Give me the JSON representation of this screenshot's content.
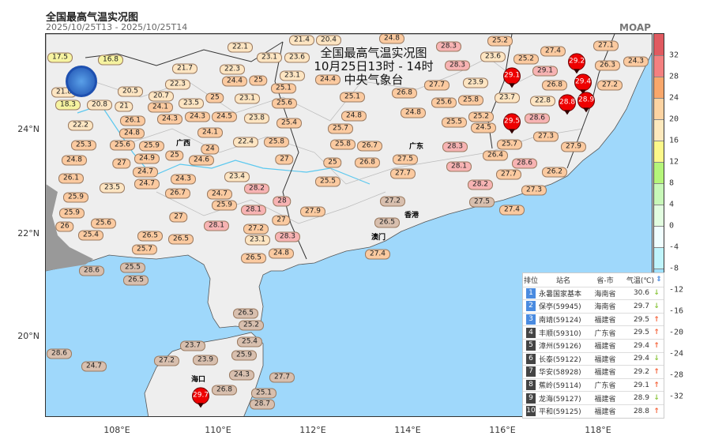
{
  "header": {
    "title": "全国最高气温实况图",
    "subtitle": "2025/10/25T13  -  2025/10/25T14",
    "brand": "MOAP"
  },
  "map": {
    "title": "全国最高气温实况图",
    "time": "10月25日13时 - 14时",
    "issuer": "中央气象台",
    "land_color": "#eeeeee",
    "sea_color": "#9fd8fb",
    "cities": [
      "广西",
      "广东",
      "香港",
      "澳门",
      "海口"
    ],
    "lat_labels": [
      "24°N",
      "22°N",
      "20°N"
    ],
    "lon_labels": [
      "108°E",
      "110°E",
      "112°E",
      "114°E",
      "116°E",
      "118°E"
    ],
    "stations": [
      "17.5",
      "16.8",
      "20.5",
      "21",
      "20.8",
      "18.3",
      "22.2",
      "24.1",
      "20.7",
      "23.5",
      "24.3",
      "24.1",
      "24.3",
      "25",
      "21.7",
      "22.3",
      "22.1",
      "22.3",
      "23.1",
      "24.4",
      "23.8",
      "25",
      "25.1",
      "24.5",
      "22.4",
      "25.8",
      "24.8",
      "25.6",
      "24.6",
      "24",
      "21.4",
      "20.4",
      "23.6",
      "23.1",
      "23.1",
      "25.6",
      "25.4",
      "24.4",
      "25.7",
      "27",
      "25.8",
      "25",
      "26.7",
      "26.8",
      "25.1",
      "24.8",
      "26.8",
      "27.7",
      "28.3",
      "28.3",
      "25.8",
      "24.8",
      "24.8",
      "23.9",
      "25.2",
      "23.6",
      "23.7",
      "25.2",
      "22.8",
      "25.6",
      "25.2",
      "25.5",
      "24.5",
      "25.7",
      "27.3",
      "28.6",
      "27.7",
      "29.1",
      "28.3",
      "28.1",
      "28.6",
      "27.4",
      "26.4",
      "28.2",
      "27.2",
      "26.8",
      "26.3",
      "27.1",
      "24.3",
      "27.5",
      "27.9",
      "27.3",
      "26.2",
      "27.4",
      "24.9",
      "24.7",
      "27",
      "25.9",
      "25.3",
      "21.8",
      "24.8",
      "26.1",
      "24.7",
      "25",
      "26.1",
      "25.9",
      "26",
      "24.3",
      "25.6",
      "25.9",
      "25.4",
      "26.5",
      "28.6",
      "26.5",
      "25.7",
      "25.5",
      "28.1",
      "27.2",
      "27",
      "23.1",
      "26.5",
      "24.8",
      "24.7",
      "23.4",
      "25.9",
      "23.5",
      "26.7",
      "27",
      "26.5",
      "28.1",
      "28.3",
      "28.2",
      "28",
      "27.9",
      "25.5",
      "27.5",
      "27.7",
      "27.2",
      "26.5",
      "27.4",
      "26.5",
      "25.4",
      "25.2",
      "25.9",
      "24.3",
      "23.9",
      "27.2",
      "23.7",
      "25.1",
      "28.7",
      "28.6",
      "24.7",
      "26.8",
      "27.7"
    ],
    "highlights": [
      "29.2",
      "29.1",
      "29.5",
      "29.4",
      "28.8",
      "28.9",
      "29.7"
    ]
  },
  "ranking": {
    "headers": [
      "排位",
      "站名",
      "省-市",
      "气温(℃)"
    ],
    "rows": [
      {
        "rank": "1",
        "name": "永暑国家基本",
        "prov": "海南省",
        "temp": "30.6",
        "trend": "down"
      },
      {
        "rank": "2",
        "name": "保亭(59945)",
        "prov": "海南省",
        "temp": "29.7",
        "trend": "down"
      },
      {
        "rank": "3",
        "name": "南靖(59124)",
        "prov": "福建省",
        "temp": "29.5",
        "trend": "up"
      },
      {
        "rank": "4",
        "name": "丰顺(59310)",
        "prov": "广东省",
        "temp": "29.5",
        "trend": "up"
      },
      {
        "rank": "5",
        "name": "漳州(59126)",
        "prov": "福建省",
        "temp": "29.4",
        "trend": "up"
      },
      {
        "rank": "6",
        "name": "长泰(59122)",
        "prov": "福建省",
        "temp": "29.4",
        "trend": "down"
      },
      {
        "rank": "7",
        "name": "华安(58928)",
        "prov": "福建省",
        "temp": "29.2",
        "trend": "up"
      },
      {
        "rank": "8",
        "name": "蕉岭(59114)",
        "prov": "广东省",
        "temp": "29.1",
        "trend": "up"
      },
      {
        "rank": "9",
        "name": "龙海(59127)",
        "prov": "福建省",
        "temp": "28.9",
        "trend": "down"
      },
      {
        "rank": "10",
        "name": "平和(59125)",
        "prov": "福建省",
        "temp": "28.8",
        "trend": "up"
      }
    ],
    "up_color": "#f5643c",
    "down_color": "#8cc63f",
    "top_rank_color": "#4a8be0",
    "rank_color": "#444444"
  },
  "colorbar": {
    "labels": [
      "32",
      "28",
      "24",
      "20",
      "16",
      "12",
      "8",
      "4",
      "0",
      "-4",
      "-8",
      "-12",
      "-16",
      "-20",
      "-24",
      "-28",
      "-32"
    ],
    "colors": [
      "#e05a60",
      "#f48080",
      "#f9a76b",
      "#fcd3a2",
      "#fde9bd",
      "#fcf88a",
      "#b5f57a",
      "#c8f8b8",
      "#e2fde0",
      "#f0feff",
      "#bff4fc",
      "#9fe0fc",
      "#6fc0f5",
      "#3f8fe6",
      "#2864c8",
      "#1a3c9a",
      "#0a1a70",
      "#7a208a"
    ]
  }
}
